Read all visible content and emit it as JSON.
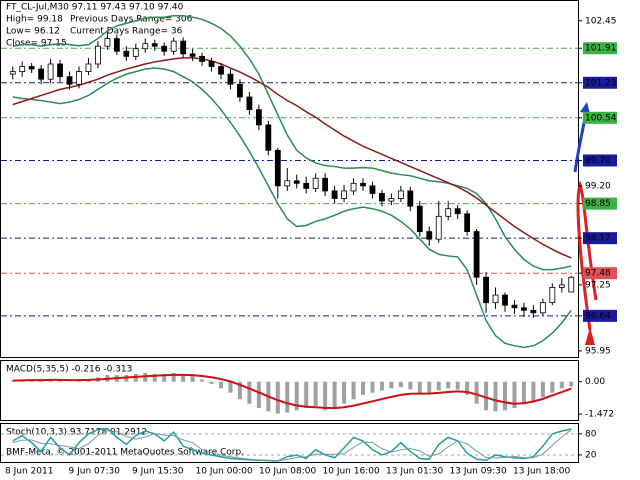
{
  "chart_data": [
    {
      "type": "candlestick",
      "title": "FT_CL-Jul,M30  97.11 97.43 97.10 97.40",
      "annotations": [
        "High= 99.18",
        "Low= 96.12",
        "Close= 97.15",
        "Previous Days Range= 306",
        "Current Days Range= 36"
      ],
      "xticks": [
        "8 Jun 2011",
        "9 Jun 07:30",
        "9 Jun 15:30",
        "10 Jun 00:00",
        "10 Jun 08:00",
        "10 Jun 16:00",
        "13 Jun 01:30",
        "13 Jun 09:30",
        "13 Jun 18:00"
      ],
      "ylim": [
        95.83,
        102.84
      ],
      "yticks": [
        102.45,
        101.91,
        101.23,
        100.54,
        {
          "value": 99.7,
          "label": "99.70"
        },
        {
          "value": 99.2,
          "label": "99.20"
        },
        98.85,
        98.17,
        97.48,
        97.25,
        96.64,
        95.95
      ],
      "ytick_colors": [
        null,
        "#3cb043",
        "#1a1a9c",
        "#3cb043",
        "#1a1a9c",
        null,
        "#3cb043",
        "#1a1a9c",
        "#e05050",
        null,
        "#1a1a9c",
        null
      ],
      "candle_color": "#000000",
      "open": [
        101.4,
        101.45,
        101.55,
        101.5,
        101.3,
        101.6,
        101.35,
        101.2,
        101.45,
        101.6,
        101.95,
        102.1,
        101.85,
        101.75,
        101.9,
        102.0,
        101.95,
        101.85,
        102.05,
        101.8,
        101.75,
        101.65,
        101.55,
        101.4,
        101.2,
        100.95,
        100.7,
        100.4,
        99.9,
        99.2,
        99.3,
        99.25,
        99.15,
        99.35,
        99.1,
        98.95,
        99.1,
        99.25,
        99.2,
        99.05,
        98.9,
        98.95,
        99.1,
        98.8,
        98.3,
        98.15,
        98.6,
        98.75,
        98.65,
        98.3,
        97.4,
        96.9,
        97.05,
        96.85,
        96.8,
        96.75,
        96.7,
        96.9,
        97.2,
        97.11
      ],
      "high": [
        101.55,
        101.65,
        101.62,
        101.58,
        101.7,
        101.68,
        101.45,
        101.55,
        101.72,
        102.05,
        102.22,
        102.18,
        101.95,
        102.0,
        102.1,
        102.08,
        102.02,
        102.12,
        102.12,
        101.9,
        101.82,
        101.72,
        101.62,
        101.5,
        101.3,
        101.05,
        100.8,
        100.48,
        99.95,
        99.55,
        99.42,
        99.38,
        99.45,
        99.45,
        99.2,
        99.22,
        99.35,
        99.35,
        99.28,
        99.12,
        99.05,
        99.2,
        99.18,
        98.9,
        98.4,
        98.9,
        98.9,
        98.82,
        98.72,
        98.35,
        97.5,
        97.2,
        97.1,
        96.95,
        96.9,
        96.85,
        96.98,
        97.28,
        97.38,
        97.43
      ],
      "low": [
        101.3,
        101.35,
        101.42,
        101.2,
        101.22,
        101.25,
        101.1,
        101.12,
        101.38,
        101.52,
        101.88,
        101.78,
        101.66,
        101.68,
        101.82,
        101.86,
        101.76,
        101.78,
        101.72,
        101.66,
        101.56,
        101.45,
        101.3,
        101.1,
        100.85,
        100.6,
        100.3,
        99.8,
        98.95,
        99.1,
        99.15,
        99.05,
        99.08,
        99.0,
        98.85,
        98.88,
        99.02,
        99.1,
        98.95,
        98.8,
        98.82,
        98.88,
        98.7,
        98.2,
        98.02,
        98.08,
        98.52,
        98.55,
        98.22,
        97.25,
        96.7,
        96.78,
        96.72,
        96.68,
        96.62,
        96.6,
        96.65,
        96.85,
        97.1,
        97.1
      ],
      "close": [
        101.45,
        101.55,
        101.5,
        101.3,
        101.6,
        101.35,
        101.2,
        101.45,
        101.6,
        101.95,
        102.1,
        101.85,
        101.75,
        101.9,
        102.0,
        101.95,
        101.85,
        102.05,
        101.8,
        101.75,
        101.65,
        101.55,
        101.4,
        101.2,
        100.95,
        100.7,
        100.4,
        99.9,
        99.2,
        99.3,
        99.25,
        99.15,
        99.35,
        99.1,
        98.95,
        99.1,
        99.25,
        99.2,
        99.05,
        98.9,
        98.95,
        99.1,
        98.8,
        98.3,
        98.15,
        98.6,
        98.75,
        98.65,
        98.3,
        97.4,
        96.9,
        97.05,
        96.85,
        96.8,
        96.75,
        96.7,
        96.9,
        97.2,
        97.25,
        97.4
      ],
      "overlays": [
        {
          "color": "#2e8b57",
          "values": [
            101.95,
            101.98,
            101.98,
            101.95,
            101.98,
            102.0,
            101.98,
            101.96,
            101.98,
            102.1,
            102.25,
            102.35,
            102.4,
            102.45,
            102.5,
            102.52,
            102.52,
            102.55,
            102.55,
            102.52,
            102.48,
            102.4,
            102.3,
            102.15,
            101.95,
            101.7,
            101.4,
            101.0,
            100.6,
            100.2,
            99.9,
            99.75,
            99.65,
            99.6,
            99.58,
            99.55,
            99.55,
            99.56,
            99.55,
            99.5,
            99.45,
            99.42,
            99.4,
            99.35,
            99.3,
            99.28,
            99.25,
            99.2,
            99.15,
            99.05,
            98.85,
            98.55,
            98.2,
            97.95,
            97.75,
            97.62,
            97.55,
            97.55,
            97.58,
            97.62
          ]
        },
        {
          "color": "#2e8b57",
          "values": [
            100.95,
            100.92,
            100.9,
            100.88,
            100.85,
            100.82,
            100.85,
            100.9,
            100.98,
            101.1,
            101.22,
            101.32,
            101.4,
            101.45,
            101.5,
            101.52,
            101.5,
            101.45,
            101.35,
            101.25,
            101.1,
            100.92,
            100.7,
            100.45,
            100.18,
            99.88,
            99.55,
            99.2,
            98.85,
            98.55,
            98.4,
            98.42,
            98.5,
            98.55,
            98.62,
            98.7,
            98.75,
            98.78,
            98.75,
            98.7,
            98.62,
            98.5,
            98.35,
            98.15,
            97.95,
            97.85,
            97.82,
            97.8,
            97.55,
            97.05,
            96.55,
            96.25,
            96.1,
            96.05,
            96.02,
            96.05,
            96.15,
            96.3,
            96.5,
            96.75
          ]
        },
        {
          "color": "#8b1a1a",
          "values": [
            100.8,
            100.86,
            100.92,
            100.98,
            101.04,
            101.1,
            101.14,
            101.18,
            101.24,
            101.3,
            101.38,
            101.44,
            101.5,
            101.55,
            101.6,
            101.64,
            101.67,
            101.7,
            101.72,
            101.72,
            101.7,
            101.66,
            101.6,
            101.52,
            101.44,
            101.35,
            101.25,
            101.14,
            101.0,
            100.88,
            100.78,
            100.66,
            100.55,
            100.42,
            100.3,
            100.18,
            100.08,
            99.98,
            99.9,
            99.82,
            99.74,
            99.66,
            99.58,
            99.5,
            99.42,
            99.34,
            99.26,
            99.18,
            99.08,
            98.96,
            98.82,
            98.68,
            98.54,
            98.4,
            98.28,
            98.16,
            98.05,
            97.95,
            97.86,
            97.78
          ]
        }
      ]
    },
    {
      "type": "macd",
      "title": "MACD(5,35,5) -0.216 -0.313",
      "ylim": [
        -1.74,
        0.94
      ],
      "yticks": [
        {
          "value": 0,
          "label": "0.00"
        },
        -1.472
      ],
      "color": "#a0a0a0",
      "line_color": "#d01010",
      "values": [
        0.05,
        0.1,
        0.1,
        0.05,
        0.1,
        0.05,
        0,
        0.05,
        0.1,
        0.2,
        0.3,
        0.3,
        0.3,
        0.35,
        0.4,
        0.35,
        0.35,
        0.4,
        0.3,
        0.25,
        0.1,
        -0.1,
        -0.3,
        -0.5,
        -0.8,
        -1.0,
        -1.2,
        -1.35,
        -1.45,
        -1.4,
        -1.3,
        -1.2,
        -1.1,
        -1.3,
        -1.2,
        -1.0,
        -0.8,
        -0.6,
        -0.5,
        -0.4,
        -0.3,
        -0.25,
        -0.35,
        -0.5,
        -0.55,
        -0.4,
        -0.3,
        -0.35,
        -0.6,
        -1.0,
        -1.3,
        -1.35,
        -1.3,
        -1.2,
        -1.0,
        -0.9,
        -0.7,
        -0.5,
        -0.3,
        -0.216
      ],
      "signal": [
        0.05,
        0.06,
        0.07,
        0.07,
        0.08,
        0.08,
        0.07,
        0.07,
        0.08,
        0.1,
        0.13,
        0.16,
        0.19,
        0.22,
        0.25,
        0.27,
        0.29,
        0.31,
        0.31,
        0.3,
        0.26,
        0.2,
        0.12,
        0.01,
        -0.14,
        -0.31,
        -0.49,
        -0.67,
        -0.84,
        -0.98,
        -1.08,
        -1.14,
        -1.16,
        -1.19,
        -1.2,
        -1.16,
        -1.09,
        -0.99,
        -0.89,
        -0.79,
        -0.69,
        -0.6,
        -0.55,
        -0.54,
        -0.54,
        -0.51,
        -0.47,
        -0.44,
        -0.47,
        -0.58,
        -0.72,
        -0.85,
        -0.94,
        -1.0,
        -0.98,
        -0.9,
        -0.78,
        -0.62,
        -0.47,
        -0.313
      ]
    },
    {
      "type": "stochastic",
      "title": "Stoch(10,3,3) 93.7178 91.2912",
      "footer": "BMF-Meta, © 2001-2011 MetaQuotes Software Corp.",
      "ylim": [
        0,
        108
      ],
      "yticks": [
        80,
        20
      ],
      "series": [
        {
          "color": "#20a0a0",
          "values": [
            60,
            75,
            55,
            30,
            70,
            40,
            20,
            55,
            80,
            92,
            95,
            70,
            50,
            75,
            88,
            80,
            60,
            85,
            45,
            35,
            25,
            20,
            15,
            10,
            8,
            6,
            5,
            4,
            3,
            15,
            20,
            10,
            35,
            20,
            12,
            40,
            70,
            60,
            35,
            20,
            30,
            55,
            30,
            10,
            8,
            50,
            70,
            60,
            25,
            8,
            5,
            20,
            15,
            12,
            10,
            15,
            45,
            80,
            88,
            93.7178
          ]
        },
        {
          "color": "#7a9aa0",
          "values": [
            55,
            62,
            63,
            53,
            52,
            47,
            43,
            38,
            52,
            76,
            89,
            86,
            72,
            65,
            71,
            81,
            76,
            75,
            63,
            55,
            35,
            27,
            20,
            15,
            11,
            8,
            6,
            5,
            4,
            7,
            13,
            15,
            22,
            22,
            22,
            24,
            41,
            57,
            55,
            38,
            28,
            35,
            38,
            32,
            16,
            23,
            43,
            60,
            52,
            31,
            13,
            11,
            13,
            16,
            12,
            12,
            23,
            47,
            71,
            91.2912
          ]
        }
      ]
    }
  ]
}
